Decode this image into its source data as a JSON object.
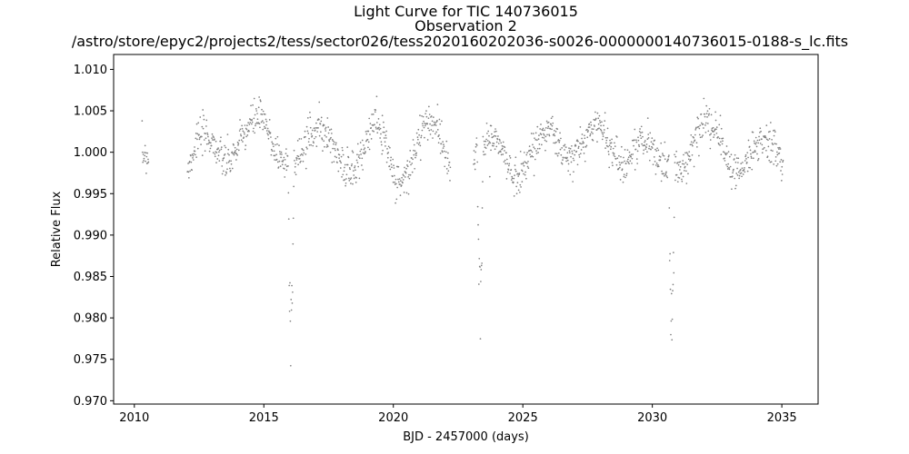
{
  "chart_data": {
    "type": "scatter",
    "title_lines": [
      "Light Curve for TIC 140736015",
      "Observation 2",
      "/astro/store/epyc2/projects2/tess/sector026/tess2020160202036-s0026-0000000140736015-0188-s_lc.fits"
    ],
    "xlabel": "BJD - 2457000 (days)",
    "ylabel": "Relative Flux",
    "xlim": [
      2009.2,
      2036.4
    ],
    "ylim": [
      0.9696,
      1.0118
    ],
    "x_ticks": [
      2010,
      2015,
      2020,
      2025,
      2030,
      2035
    ],
    "x_tick_labels": [
      "2010",
      "2015",
      "2020",
      "2025",
      "2030",
      "2035"
    ],
    "y_ticks": [
      0.97,
      0.975,
      0.98,
      0.985,
      0.99,
      0.995,
      1.0,
      1.005,
      1.01
    ],
    "y_tick_labels": [
      "0.970",
      "0.975",
      "0.980",
      "0.985",
      "0.990",
      "0.995",
      "1.000",
      "1.005",
      "1.010"
    ],
    "grid": false,
    "marker_color": "#808080",
    "data_segments": [
      [
        2010.3,
        2010.55
      ],
      [
        2012.05,
        2022.2
      ],
      [
        2023.1,
        2035.05
      ]
    ],
    "transit_minima": [
      {
        "x": 2016.05,
        "y": 0.974
      },
      {
        "x": 2023.35,
        "y": 0.9765
      },
      {
        "x": 2030.75,
        "y": 0.9725
      }
    ],
    "series": [
      {
        "x": [
          2010.3,
          2010.4,
          2010.5,
          2012.1,
          2012.4,
          2012.7,
          2013.0,
          2013.3,
          2013.6,
          2013.9,
          2014.2,
          2014.5,
          2014.8,
          2015.1,
          2015.4,
          2015.7,
          2016.0,
          2016.05,
          2016.3,
          2016.6,
          2016.9,
          2017.2,
          2017.5,
          2017.8,
          2018.1,
          2018.4,
          2018.7,
          2019.0,
          2019.3,
          2019.6,
          2019.9,
          2020.2,
          2020.5,
          2020.8,
          2021.1,
          2021.4,
          2021.7,
          2022.0,
          2022.2,
          2023.1,
          2023.35,
          2023.6,
          2023.9,
          2024.2,
          2024.5,
          2024.8,
          2025.1,
          2025.4,
          2025.7,
          2026.0,
          2026.3,
          2026.6,
          2026.9,
          2027.2,
          2027.5,
          2027.8,
          2028.1,
          2028.4,
          2028.7,
          2029.0,
          2029.3,
          2029.6,
          2029.9,
          2030.2,
          2030.5,
          2030.75,
          2031.0,
          2031.3,
          2031.6,
          2031.9,
          2032.2,
          2032.5,
          2032.8,
          2033.1,
          2033.4,
          2033.7,
          2034.0,
          2034.3,
          2034.6,
          2034.9,
          2035.05
        ],
        "y": [
          0.9995,
          1.0,
          0.9995,
          0.998,
          1.0015,
          1.002,
          1.0015,
          0.9995,
          0.9985,
          1.0,
          1.002,
          1.0035,
          1.0045,
          1.003,
          1.0005,
          0.999,
          0.9985,
          0.974,
          0.9985,
          1.001,
          1.0025,
          1.003,
          1.002,
          0.9995,
          0.9975,
          0.9975,
          0.999,
          1.0015,
          1.004,
          1.002,
          0.9985,
          0.9965,
          0.997,
          1.0,
          1.0025,
          1.004,
          1.0025,
          0.9995,
          0.998,
          0.999,
          0.9765,
          1.0015,
          1.0015,
          1.0005,
          0.9975,
          0.997,
          0.9985,
          1.0005,
          1.002,
          1.003,
          1.0015,
          0.9995,
          0.999,
          1.0005,
          1.002,
          1.0035,
          1.003,
          1.0005,
          0.999,
          0.9985,
          1.0005,
          1.0015,
          1.001,
          0.9995,
          0.998,
          0.9725,
          0.998,
          0.9985,
          1.001,
          1.003,
          1.004,
          1.0025,
          0.9995,
          0.9975,
          0.9975,
          0.999,
          1.0015,
          1.002,
          1.001,
          0.9995,
          0.9985
        ]
      }
    ]
  }
}
